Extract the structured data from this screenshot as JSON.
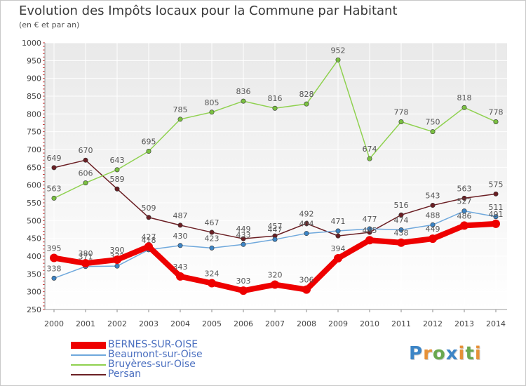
{
  "chart_data": {
    "type": "line",
    "title": "Evolution des Impôts locaux pour la Commune par Habitant",
    "subtitle": "(en € et par an)",
    "xlabel": "",
    "ylabel": "",
    "categories": [
      "2000",
      "2001",
      "2002",
      "2003",
      "2004",
      "2005",
      "2006",
      "2007",
      "2008",
      "2009",
      "2010",
      "2011",
      "2012",
      "2013",
      "2014"
    ],
    "ylim": [
      250,
      1000
    ],
    "yticks": [
      250,
      300,
      350,
      400,
      450,
      500,
      550,
      600,
      650,
      700,
      750,
      800,
      850,
      900,
      950,
      1000
    ],
    "grid": true,
    "legend_position": "bottom-left",
    "series": [
      {
        "name": "Persan",
        "color": "#6b1f24",
        "marker": "#6b1f24",
        "values": [
          649,
          670,
          589,
          509,
          487,
          467,
          449,
          457,
          492,
          457,
          467,
          516,
          543,
          563,
          575
        ],
        "labels": [
          "649",
          "670",
          "589",
          "509",
          "487",
          "467",
          "449",
          "457",
          "492",
          "",
          "",
          "516",
          "543",
          "563",
          "575"
        ]
      },
      {
        "name": "Bruyères-sur-Oise",
        "color": "#8fd14f",
        "marker": "#7bc142",
        "values": [
          563,
          606,
          643,
          695,
          785,
          805,
          836,
          816,
          828,
          952,
          674,
          778,
          750,
          818,
          778
        ],
        "labels": [
          "563",
          "606",
          "643",
          "695",
          "785",
          "805",
          "836",
          "816",
          "828",
          "952",
          "674",
          "778",
          "750",
          "818",
          "778"
        ]
      },
      {
        "name": "Beaumont-sur-Oise",
        "color": "#6fa8dc",
        "marker": "#3d85c6",
        "values": [
          338,
          371,
          372,
          418,
          430,
          423,
          433,
          447,
          464,
          471,
          477,
          474,
          488,
          527,
          511
        ],
        "labels": [
          "338",
          "371",
          "372",
          "418",
          "430",
          "423",
          "433",
          "447",
          "464",
          "471",
          "477",
          "474",
          "488",
          "527",
          "511"
        ]
      },
      {
        "name": "BERNES-SUR-OISE",
        "color": "#ee0000",
        "marker": "#ee0000",
        "values": [
          395,
          380,
          390,
          427,
          343,
          324,
          303,
          320,
          306,
          394,
          445,
          438,
          449,
          486,
          491
        ],
        "labels": [
          "395",
          "380",
          "390",
          "427",
          "343",
          "324",
          "303",
          "320",
          "306",
          "394",
          "445",
          "438",
          "449",
          "486",
          "491"
        ]
      }
    ]
  },
  "legend": [
    {
      "name": "BERNES-SUR-OISE",
      "color": "#ee0000"
    },
    {
      "name": "Beaumont-sur-Oise",
      "color": "#6fa8dc"
    },
    {
      "name": "Bruyères-sur-Oise",
      "color": "#8fd14f"
    },
    {
      "name": "Persan",
      "color": "#6b1f24"
    }
  ],
  "logo": {
    "letters": [
      "P",
      "r",
      "o",
      "x",
      "i",
      "t",
      "i"
    ],
    "colors": [
      "#3d85c6",
      "#e69138",
      "#6aa84f",
      "#3d85c6",
      "#e69138",
      "#6aa84f",
      "#e69138"
    ]
  }
}
